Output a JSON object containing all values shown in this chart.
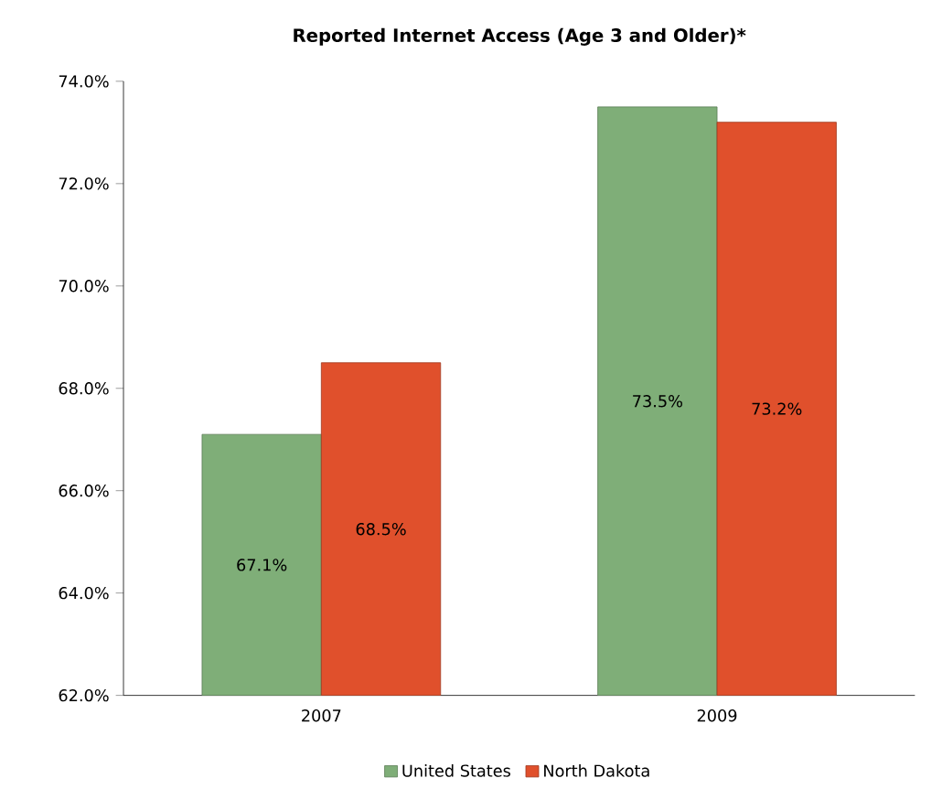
{
  "chart_data": {
    "type": "bar",
    "title": "Reported Internet Access (Age 3 and Older)*",
    "categories": [
      "2007",
      "2009"
    ],
    "series": [
      {
        "name": "United States",
        "color": "#7fae78",
        "values": [
          67.1,
          73.5
        ],
        "value_labels": [
          "67.1%",
          "73.5%"
        ]
      },
      {
        "name": "North Dakota",
        "color": "#e0502c",
        "values": [
          68.5,
          73.2
        ],
        "value_labels": [
          "68.5%",
          "73.2%"
        ]
      }
    ],
    "ylim": [
      62,
      74
    ],
    "yticks": [
      {
        "value": 62,
        "label": "62.0%"
      },
      {
        "value": 64,
        "label": "64.0%"
      },
      {
        "value": 66,
        "label": "66.0%"
      },
      {
        "value": 68,
        "label": "68.0%"
      },
      {
        "value": 70,
        "label": "70.0%"
      },
      {
        "value": 72,
        "label": "72.0%"
      },
      {
        "value": 74,
        "label": "74.0%"
      }
    ],
    "legend": "bottom"
  }
}
